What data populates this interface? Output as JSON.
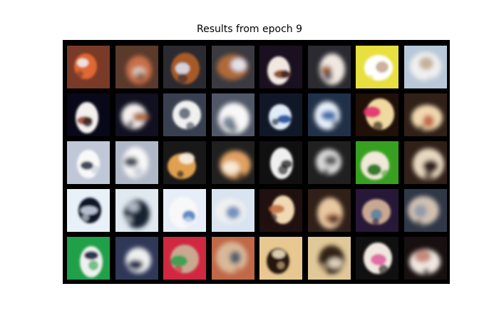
{
  "figure": {
    "title": "Results from epoch 9"
  },
  "grid": {
    "rows": 5,
    "cols": 8,
    "tiles": [
      {
        "pair": "original",
        "bg": "#7a3a28",
        "subject": "#e06830",
        "accent": "#f0f0f0"
      },
      {
        "pair": "reconstruction",
        "bg": "#5a3a2a",
        "subject": "#c87048",
        "accent": "#d8d0c8"
      },
      {
        "pair": "original",
        "bg": "#2a2a30",
        "subject": "#a85a28",
        "accent": "#d8e0f0"
      },
      {
        "pair": "reconstruction",
        "bg": "#3a3a40",
        "subject": "#b06a38",
        "accent": "#e8f0ff"
      },
      {
        "pair": "original",
        "bg": "#1a1020",
        "subject": "#f2e8e0",
        "accent": "#8a4020"
      },
      {
        "pair": "reconstruction",
        "bg": "#2a2a30",
        "subject": "#f0e8e0",
        "accent": "#9a5a30"
      },
      {
        "pair": "original",
        "bg": "#e8e040",
        "subject": "#ffffff",
        "accent": "#c8a890"
      },
      {
        "pair": "reconstruction",
        "bg": "#b8c8d8",
        "subject": "#f0f0f0",
        "accent": "#c0a890"
      },
      {
        "pair": "original",
        "bg": "#080818",
        "subject": "#f4f0ee",
        "accent": "#a05028"
      },
      {
        "pair": "reconstruction",
        "bg": "#101020",
        "subject": "#f4f0ee",
        "accent": "#a86038"
      },
      {
        "pair": "original",
        "bg": "#384050",
        "subject": "#f0f0f0",
        "accent": "#606878"
      },
      {
        "pair": "reconstruction",
        "bg": "#505868",
        "subject": "#f8f8f8",
        "accent": "#708090"
      },
      {
        "pair": "original",
        "bg": "#101828",
        "subject": "#e0ecf8",
        "accent": "#2050a0"
      },
      {
        "pair": "reconstruction",
        "bg": "#203048",
        "subject": "#e8f0f8",
        "accent": "#3060a8"
      },
      {
        "pair": "original",
        "bg": "#201008",
        "subject": "#f0d8a0",
        "accent": "#e03070"
      },
      {
        "pair": "reconstruction",
        "bg": "#302018",
        "subject": "#f0d8b0",
        "accent": "#c06040"
      },
      {
        "pair": "original",
        "bg": "#c0c8d8",
        "subject": "#f8f8f8",
        "accent": "#303848"
      },
      {
        "pair": "reconstruction",
        "bg": "#b0b8c8",
        "subject": "#f8f8f8",
        "accent": "#303848"
      },
      {
        "pair": "original",
        "bg": "#181818",
        "subject": "#e0a050",
        "accent": "#f8f0e0"
      },
      {
        "pair": "reconstruction",
        "bg": "#202020",
        "subject": "#e0a060",
        "accent": "#f8f0e0"
      },
      {
        "pair": "original",
        "bg": "#101010",
        "subject": "#f0f0f0",
        "accent": "#404040"
      },
      {
        "pair": "reconstruction",
        "bg": "#202020",
        "subject": "#d8d8d8",
        "accent": "#505050"
      },
      {
        "pair": "original",
        "bg": "#38a020",
        "subject": "#f0e8d8",
        "accent": "#207018"
      },
      {
        "pair": "reconstruction",
        "bg": "#302018",
        "subject": "#e8d8c0",
        "accent": "#201008"
      },
      {
        "pair": "original",
        "bg": "#e8f0f8",
        "subject": "#101828",
        "accent": "#c8d0e0"
      },
      {
        "pair": "reconstruction",
        "bg": "#e0e8f0",
        "subject": "#182030",
        "accent": "#c0c8d8"
      },
      {
        "pair": "original",
        "bg": "#e8eef8",
        "subject": "#f8f8f8",
        "accent": "#5080c0"
      },
      {
        "pair": "reconstruction",
        "bg": "#d8e4f0",
        "subject": "#f0f0f0",
        "accent": "#6088b8"
      },
      {
        "pair": "original",
        "bg": "#201010",
        "subject": "#f0d8b0",
        "accent": "#c07040"
      },
      {
        "pair": "reconstruction",
        "bg": "#302018",
        "subject": "#e8c8a0",
        "accent": "#b07050"
      },
      {
        "pair": "original",
        "bg": "#281838",
        "subject": "#c8a890",
        "accent": "#6080a0"
      },
      {
        "pair": "reconstruction",
        "bg": "#303848",
        "subject": "#d0c0b0",
        "accent": "#8898a8"
      },
      {
        "pair": "original",
        "bg": "#20a048",
        "subject": "#f0f0f0",
        "accent": "#1a2040"
      },
      {
        "pair": "reconstruction",
        "bg": "#303858",
        "subject": "#f0f0f0",
        "accent": "#1a2040"
      },
      {
        "pair": "original",
        "bg": "#d02840",
        "subject": "#c8a890",
        "accent": "#30a050"
      },
      {
        "pair": "reconstruction",
        "bg": "#c06848",
        "subject": "#d8b898",
        "accent": "#405868"
      },
      {
        "pair": "original",
        "bg": "#e8c890",
        "subject": "#281810",
        "accent": "#f0e0c0"
      },
      {
        "pair": "reconstruction",
        "bg": "#e0c898",
        "subject": "#302018",
        "accent": "#f0e0c8"
      },
      {
        "pair": "original",
        "bg": "#101010",
        "subject": "#f0e8e0",
        "accent": "#e060a0"
      },
      {
        "pair": "reconstruction",
        "bg": "#181010",
        "subject": "#f0e8e0",
        "accent": "#c08070"
      }
    ]
  }
}
